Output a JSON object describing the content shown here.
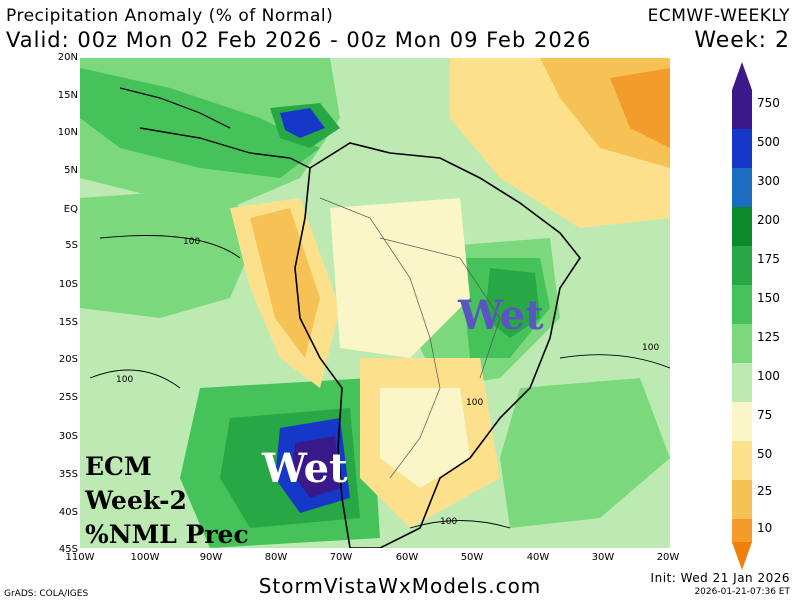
{
  "header": {
    "title": "Precipitation Anomaly (% of Normal)",
    "valid": "Valid: 00z Mon 02 Feb 2026 - 00z Mon 09 Feb 2026",
    "model": "ECMWF-WEEKLY",
    "week": "Week: 2"
  },
  "axes": {
    "lat_labels": [
      "20N",
      "15N",
      "10N",
      "5N",
      "EQ",
      "5S",
      "10S",
      "15S",
      "20S",
      "25S",
      "30S",
      "35S",
      "40S",
      "45S"
    ],
    "lon_labels": [
      "110W",
      "100W",
      "90W",
      "80W",
      "70W",
      "60W",
      "50W",
      "40W",
      "30W",
      "20W"
    ]
  },
  "legend": {
    "labels": [
      "750",
      "500",
      "300",
      "200",
      "175",
      "150",
      "125",
      "100",
      "75",
      "50",
      "25",
      "10"
    ],
    "colors": [
      "#3a1a8a",
      "#1638c8",
      "#1a6dc0",
      "#0b8a2a",
      "#27a845",
      "#46c25a",
      "#7bd87c",
      "#bdeab3",
      "#fbf6c8",
      "#fce08c",
      "#f7c255",
      "#f39c2c",
      "#f0800a"
    ]
  },
  "contours": {
    "label_a": "100",
    "label_b": "100",
    "label_c": "100",
    "label_d": "100",
    "label_e": "100"
  },
  "overlays": {
    "wet_brazil": "Wet",
    "wet_chile": "Wet",
    "caption_line1": "ECM",
    "caption_line2": "Week-2",
    "caption_line3": "%NML Prec"
  },
  "footer": {
    "site": "StormVistaWxModels.com",
    "credit": "GrADS: COLA/IGES",
    "init": "Init: Wed 21 Jan 2026",
    "stamp": "2026-01-21-07:36 ET"
  }
}
